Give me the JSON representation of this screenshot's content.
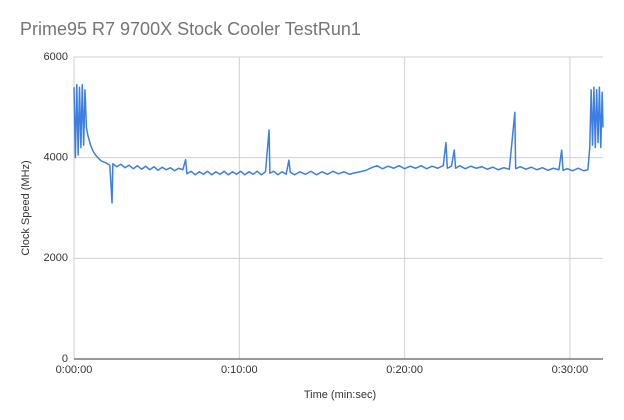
{
  "chart_data": {
    "type": "line",
    "title": "Prime95 R7 9700X Stock Cooler TestRun1",
    "x_label": "Time (min:sec)",
    "y_label": "Clock Speed (MHz)",
    "color": "#3d7fe0",
    "grid": true,
    "xlim": [
      0,
      1920
    ],
    "ylim": [
      0,
      6000
    ],
    "xticks": [
      {
        "value": 0,
        "label": "0:00:00"
      },
      {
        "value": 600,
        "label": "0:10:00"
      },
      {
        "value": 1200,
        "label": "0:20:00"
      },
      {
        "value": 1800,
        "label": "0:30:00"
      }
    ],
    "yticks": [
      0,
      2000,
      4000,
      6000
    ],
    "x": [
      0,
      5,
      10,
      15,
      20,
      25,
      30,
      35,
      40,
      45,
      50,
      60,
      70,
      80,
      90,
      100,
      115,
      130,
      138,
      141,
      155,
      170,
      185,
      200,
      215,
      230,
      245,
      260,
      275,
      290,
      305,
      320,
      335,
      350,
      365,
      380,
      395,
      405,
      410,
      425,
      440,
      455,
      470,
      485,
      500,
      515,
      530,
      545,
      560,
      575,
      590,
      605,
      620,
      635,
      650,
      665,
      680,
      695,
      708,
      711,
      725,
      740,
      755,
      770,
      780,
      785,
      800,
      820,
      840,
      860,
      880,
      900,
      920,
      940,
      960,
      980,
      1000,
      1020,
      1040,
      1060,
      1080,
      1100,
      1120,
      1140,
      1160,
      1180,
      1200,
      1220,
      1240,
      1260,
      1280,
      1300,
      1320,
      1340,
      1350,
      1355,
      1370,
      1380,
      1385,
      1400,
      1420,
      1440,
      1460,
      1480,
      1500,
      1520,
      1540,
      1560,
      1580,
      1600,
      1603,
      1620,
      1640,
      1660,
      1680,
      1700,
      1720,
      1740,
      1760,
      1770,
      1775,
      1790,
      1810,
      1830,
      1850,
      1865,
      1872,
      1877,
      1882,
      1887,
      1892,
      1897,
      1902,
      1907,
      1912,
      1917,
      1920
    ],
    "values": [
      5400,
      4000,
      5450,
      4050,
      5400,
      4200,
      5450,
      4250,
      5350,
      4600,
      4450,
      4250,
      4120,
      4040,
      3980,
      3930,
      3900,
      3850,
      3100,
      3880,
      3820,
      3870,
      3800,
      3850,
      3780,
      3840,
      3770,
      3830,
      3760,
      3820,
      3750,
      3810,
      3760,
      3800,
      3740,
      3790,
      3760,
      3960,
      3680,
      3730,
      3660,
      3720,
      3670,
      3730,
      3660,
      3720,
      3670,
      3730,
      3660,
      3720,
      3670,
      3730,
      3660,
      3720,
      3670,
      3730,
      3660,
      3720,
      4550,
      3690,
      3730,
      3660,
      3720,
      3670,
      3950,
      3710,
      3660,
      3720,
      3670,
      3730,
      3660,
      3720,
      3670,
      3730,
      3680,
      3720,
      3670,
      3700,
      3720,
      3750,
      3800,
      3840,
      3780,
      3830,
      3790,
      3840,
      3780,
      3830,
      3790,
      3840,
      3780,
      3830,
      3790,
      3840,
      4300,
      3790,
      3830,
      4150,
      3790,
      3840,
      3780,
      3830,
      3790,
      3820,
      3770,
      3810,
      3760,
      3800,
      3770,
      4900,
      3780,
      3820,
      3770,
      3810,
      3760,
      3800,
      3750,
      3790,
      3760,
      4150,
      3750,
      3780,
      3740,
      3790,
      3740,
      3760,
      4200,
      5350,
      4250,
      5400,
      4200,
      5350,
      4300,
      5400,
      4200,
      5300,
      4600
    ]
  }
}
